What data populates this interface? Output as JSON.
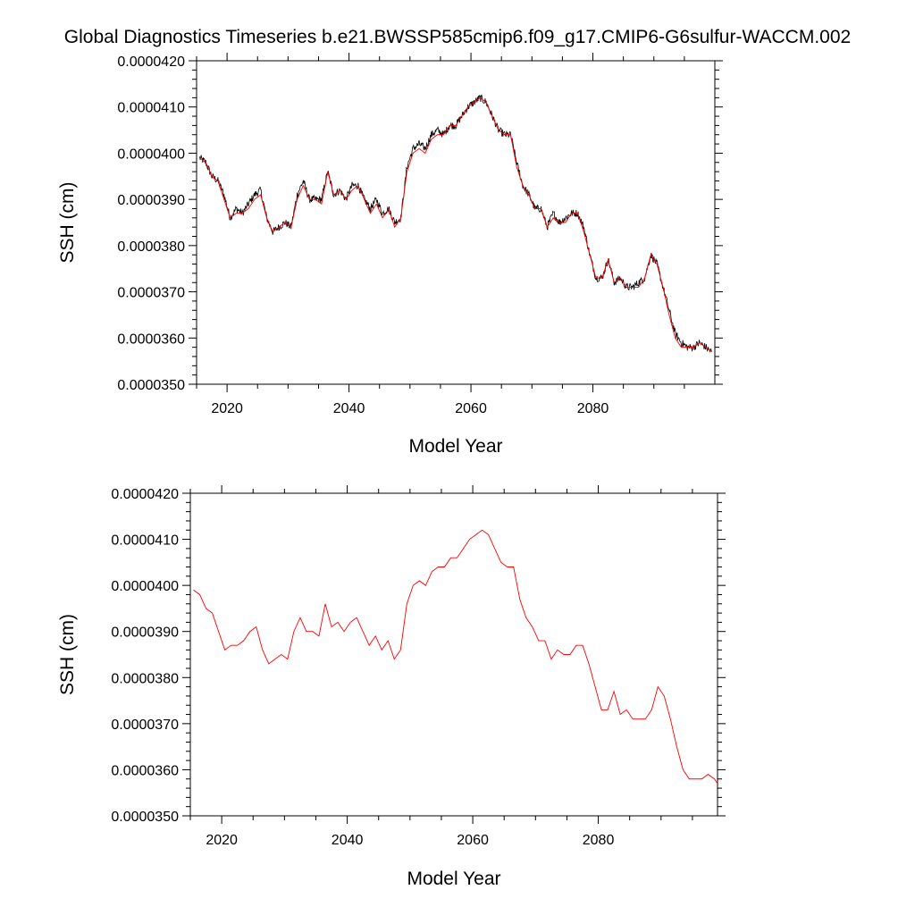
{
  "title": "Global Diagnostics Timeseries b.e21.BWSSP585cmip6.f09_g17.CMIP6-G6sulfur-WACCM.002",
  "colors": {
    "raw": "#000000",
    "smooth": "#ff0000",
    "axis": "#000000",
    "background": "#ffffff"
  },
  "chart_data": [
    {
      "type": "line",
      "panel": "top",
      "title": "Global Diagnostics Timeseries b.e21.BWSSP585cmip6.f09_g17.CMIP6-G6sulfur-WACCM.002",
      "xlabel": "Model Year",
      "ylabel": "SSH (cm)",
      "xlim": [
        2015,
        2100
      ],
      "ylim": [
        3.5e-05,
        4.2e-05
      ],
      "xticks": [
        2020,
        2040,
        2060,
        2080
      ],
      "xtick_labels": [
        "2020",
        "2040",
        "2060",
        "2080"
      ],
      "yticks": [
        3.5e-05,
        3.6e-05,
        3.7e-05,
        3.8e-05,
        3.9e-05,
        4e-05,
        4.1e-05,
        4.2e-05
      ],
      "ytick_labels": [
        "0.0000350",
        "0.0000360",
        "0.0000370",
        "0.0000380",
        "0.0000390",
        "0.0000400",
        "0.0000410",
        "0.0000420"
      ],
      "grid": false,
      "legend": "none",
      "series": [
        {
          "style": "monthly",
          "color": "#000000",
          "x": [
            2015.5,
            2016.5,
            2017.5,
            2018.5,
            2019.5,
            2020.5,
            2021.5,
            2022.5,
            2023.5,
            2024.5,
            2025.5,
            2026.5,
            2027.5,
            2028.5,
            2029.5,
            2030.5,
            2031.5,
            2032.5,
            2033.5,
            2034.5,
            2035.5,
            2036.5,
            2037.5,
            2038.5,
            2039.5,
            2040.5,
            2041.5,
            2042.5,
            2043.5,
            2044.5,
            2045.5,
            2046.5,
            2047.5,
            2048.5,
            2049.5,
            2050.5,
            2051.5,
            2052.5,
            2053.5,
            2054.5,
            2055.5,
            2056.5,
            2057.5,
            2058.5,
            2059.5,
            2060.5,
            2061.5,
            2062.5,
            2063.5,
            2064.5,
            2065.5,
            2066.5,
            2067.5,
            2068.5,
            2069.5,
            2070.5,
            2071.5,
            2072.5,
            2073.5,
            2074.5,
            2075.5,
            2076.5,
            2077.5,
            2078.5,
            2079.5,
            2080.5,
            2081.5,
            2082.5,
            2083.5,
            2084.5,
            2085.5,
            2086.5,
            2087.5,
            2088.5,
            2089.5,
            2090.5,
            2091.5,
            2092.5,
            2093.5,
            2094.5,
            2095.5,
            2096.5,
            2097.5,
            2098.5,
            2099.5
          ],
          "values": [
            3.99e-05,
            3.98e-05,
            3.95e-05,
            3.94e-05,
            3.91e-05,
            3.86e-05,
            3.88e-05,
            3.87e-05,
            3.89e-05,
            3.91e-05,
            3.92e-05,
            3.86e-05,
            3.83e-05,
            3.84e-05,
            3.85e-05,
            3.84e-05,
            3.91e-05,
            3.94e-05,
            3.9e-05,
            3.9e-05,
            3.9e-05,
            3.96e-05,
            3.91e-05,
            3.92e-05,
            3.9e-05,
            3.93e-05,
            3.93e-05,
            3.9e-05,
            3.88e-05,
            3.9e-05,
            3.87e-05,
            3.88e-05,
            3.85e-05,
            3.86e-05,
            3.97e-05,
            4.01e-05,
            4.02e-05,
            4.01e-05,
            4.04e-05,
            4.05e-05,
            4.04e-05,
            4.06e-05,
            4.06e-05,
            4.08e-05,
            4.1e-05,
            4.11e-05,
            4.12e-05,
            4.11e-05,
            4.08e-05,
            4.05e-05,
            4.04e-05,
            4.04e-05,
            3.98e-05,
            3.93e-05,
            3.91e-05,
            3.88e-05,
            3.88e-05,
            3.84e-05,
            3.87e-05,
            3.85e-05,
            3.86e-05,
            3.87e-05,
            3.87e-05,
            3.84e-05,
            3.78e-05,
            3.73e-05,
            3.73e-05,
            3.77e-05,
            3.72e-05,
            3.73e-05,
            3.71e-05,
            3.71e-05,
            3.72e-05,
            3.73e-05,
            3.78e-05,
            3.76e-05,
            3.71e-05,
            3.66e-05,
            3.61e-05,
            3.59e-05,
            3.58e-05,
            3.58e-05,
            3.59e-05,
            3.58e-05,
            3.57e-05
          ]
        },
        {
          "style": "annual",
          "color": "#ff0000",
          "x": [
            2015.5,
            2016.5,
            2017.5,
            2018.5,
            2019.5,
            2020.5,
            2021.5,
            2022.5,
            2023.5,
            2024.5,
            2025.5,
            2026.5,
            2027.5,
            2028.5,
            2029.5,
            2030.5,
            2031.5,
            2032.5,
            2033.5,
            2034.5,
            2035.5,
            2036.5,
            2037.5,
            2038.5,
            2039.5,
            2040.5,
            2041.5,
            2042.5,
            2043.5,
            2044.5,
            2045.5,
            2046.5,
            2047.5,
            2048.5,
            2049.5,
            2050.5,
            2051.5,
            2052.5,
            2053.5,
            2054.5,
            2055.5,
            2056.5,
            2057.5,
            2058.5,
            2059.5,
            2060.5,
            2061.5,
            2062.5,
            2063.5,
            2064.5,
            2065.5,
            2066.5,
            2067.5,
            2068.5,
            2069.5,
            2070.5,
            2071.5,
            2072.5,
            2073.5,
            2074.5,
            2075.5,
            2076.5,
            2077.5,
            2078.5,
            2079.5,
            2080.5,
            2081.5,
            2082.5,
            2083.5,
            2084.5,
            2085.5,
            2086.5,
            2087.5,
            2088.5,
            2089.5,
            2090.5,
            2091.5,
            2092.5,
            2093.5,
            2094.5,
            2095.5,
            2096.5,
            2097.5,
            2098.5,
            2099.5
          ],
          "values": [
            3.99e-05,
            3.98e-05,
            3.95e-05,
            3.94e-05,
            3.9e-05,
            3.86e-05,
            3.87e-05,
            3.87e-05,
            3.88e-05,
            3.9e-05,
            3.91e-05,
            3.86e-05,
            3.83e-05,
            3.84e-05,
            3.85e-05,
            3.84e-05,
            3.9e-05,
            3.93e-05,
            3.9e-05,
            3.9e-05,
            3.89e-05,
            3.96e-05,
            3.91e-05,
            3.92e-05,
            3.9e-05,
            3.92e-05,
            3.93e-05,
            3.9e-05,
            3.87e-05,
            3.89e-05,
            3.86e-05,
            3.88e-05,
            3.84e-05,
            3.86e-05,
            3.96e-05,
            4e-05,
            4.01e-05,
            4e-05,
            4.03e-05,
            4.04e-05,
            4.04e-05,
            4.06e-05,
            4.06e-05,
            4.08e-05,
            4.1e-05,
            4.11e-05,
            4.12e-05,
            4.11e-05,
            4.08e-05,
            4.05e-05,
            4.04e-05,
            4.04e-05,
            3.97e-05,
            3.93e-05,
            3.91e-05,
            3.88e-05,
            3.88e-05,
            3.84e-05,
            3.86e-05,
            3.85e-05,
            3.85e-05,
            3.87e-05,
            3.87e-05,
            3.83e-05,
            3.78e-05,
            3.73e-05,
            3.73e-05,
            3.77e-05,
            3.72e-05,
            3.73e-05,
            3.71e-05,
            3.71e-05,
            3.71e-05,
            3.73e-05,
            3.78e-05,
            3.76e-05,
            3.71e-05,
            3.65e-05,
            3.6e-05,
            3.58e-05,
            3.58e-05,
            3.58e-05,
            3.59e-05,
            3.58e-05,
            3.57e-05
          ]
        }
      ]
    },
    {
      "type": "line",
      "panel": "bottom",
      "xlabel": "Model Year",
      "ylabel": "SSH (cm)",
      "xlim": [
        2015,
        2099
      ],
      "ylim": [
        3.5e-05,
        4.2e-05
      ],
      "xticks": [
        2020,
        2040,
        2060,
        2080
      ],
      "xtick_labels": [
        "2020",
        "2040",
        "2060",
        "2080"
      ],
      "yticks": [
        3.5e-05,
        3.6e-05,
        3.7e-05,
        3.8e-05,
        3.9e-05,
        4e-05,
        4.1e-05,
        4.2e-05
      ],
      "ytick_labels": [
        "0.0000350",
        "0.0000360",
        "0.0000370",
        "0.0000380",
        "0.0000390",
        "0.0000400",
        "0.0000410",
        "0.0000420"
      ],
      "grid": false,
      "legend": "none",
      "series": [
        {
          "style": "annual",
          "color": "#ff0000",
          "x": [
            2015.5,
            2016.5,
            2017.5,
            2018.5,
            2019.5,
            2020.5,
            2021.5,
            2022.5,
            2023.5,
            2024.5,
            2025.5,
            2026.5,
            2027.5,
            2028.5,
            2029.5,
            2030.5,
            2031.5,
            2032.5,
            2033.5,
            2034.5,
            2035.5,
            2036.5,
            2037.5,
            2038.5,
            2039.5,
            2040.5,
            2041.5,
            2042.5,
            2043.5,
            2044.5,
            2045.5,
            2046.5,
            2047.5,
            2048.5,
            2049.5,
            2050.5,
            2051.5,
            2052.5,
            2053.5,
            2054.5,
            2055.5,
            2056.5,
            2057.5,
            2058.5,
            2059.5,
            2060.5,
            2061.5,
            2062.5,
            2063.5,
            2064.5,
            2065.5,
            2066.5,
            2067.5,
            2068.5,
            2069.5,
            2070.5,
            2071.5,
            2072.5,
            2073.5,
            2074.5,
            2075.5,
            2076.5,
            2077.5,
            2078.5,
            2079.5,
            2080.5,
            2081.5,
            2082.5,
            2083.5,
            2084.5,
            2085.5,
            2086.5,
            2087.5,
            2088.5,
            2089.5,
            2090.5,
            2091.5,
            2092.5,
            2093.5,
            2094.5,
            2095.5,
            2096.5,
            2097.5,
            2098.5,
            2099.0
          ],
          "values": [
            3.99e-05,
            3.98e-05,
            3.95e-05,
            3.94e-05,
            3.9e-05,
            3.86e-05,
            3.87e-05,
            3.87e-05,
            3.88e-05,
            3.9e-05,
            3.91e-05,
            3.86e-05,
            3.83e-05,
            3.84e-05,
            3.85e-05,
            3.84e-05,
            3.9e-05,
            3.93e-05,
            3.9e-05,
            3.9e-05,
            3.89e-05,
            3.96e-05,
            3.91e-05,
            3.92e-05,
            3.9e-05,
            3.92e-05,
            3.93e-05,
            3.9e-05,
            3.87e-05,
            3.89e-05,
            3.86e-05,
            3.88e-05,
            3.84e-05,
            3.86e-05,
            3.96e-05,
            4e-05,
            4.01e-05,
            4e-05,
            4.03e-05,
            4.04e-05,
            4.04e-05,
            4.06e-05,
            4.06e-05,
            4.08e-05,
            4.1e-05,
            4.11e-05,
            4.12e-05,
            4.11e-05,
            4.08e-05,
            4.05e-05,
            4.04e-05,
            4.04e-05,
            3.97e-05,
            3.93e-05,
            3.91e-05,
            3.88e-05,
            3.88e-05,
            3.84e-05,
            3.86e-05,
            3.85e-05,
            3.85e-05,
            3.87e-05,
            3.87e-05,
            3.83e-05,
            3.78e-05,
            3.73e-05,
            3.73e-05,
            3.77e-05,
            3.72e-05,
            3.73e-05,
            3.71e-05,
            3.71e-05,
            3.71e-05,
            3.73e-05,
            3.78e-05,
            3.76e-05,
            3.71e-05,
            3.65e-05,
            3.6e-05,
            3.58e-05,
            3.58e-05,
            3.58e-05,
            3.59e-05,
            3.58e-05,
            3.57e-05
          ]
        }
      ]
    }
  ]
}
